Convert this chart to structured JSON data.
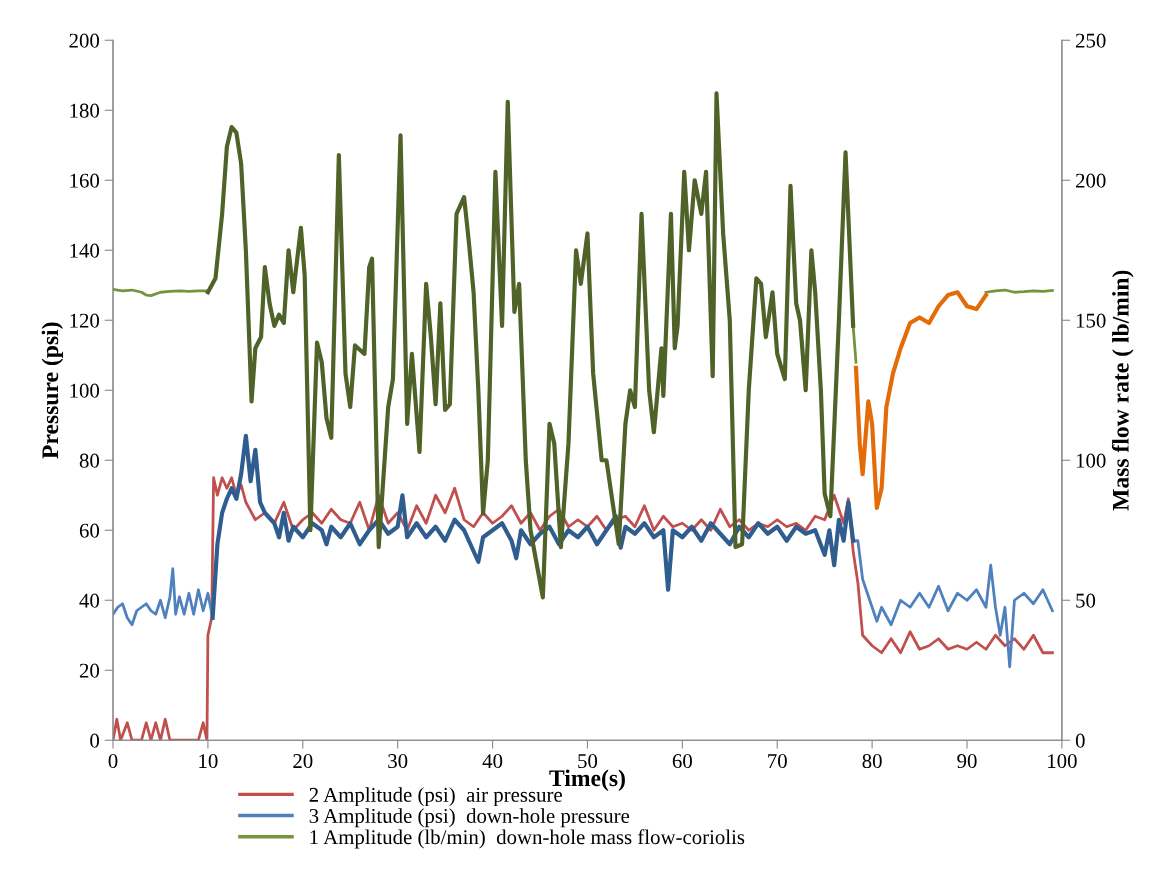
{
  "chart_data": {
    "type": "line",
    "xlabel": "Time(s)",
    "ylabel": "Pressure (psi)",
    "y2label": "Mass flow rate ( lb/min)",
    "xlim": [
      0,
      100
    ],
    "xticks": [
      0,
      10,
      20,
      30,
      40,
      50,
      60,
      70,
      80,
      90,
      100
    ],
    "ylim": [
      0,
      200
    ],
    "yticks": [
      0,
      20,
      40,
      60,
      80,
      100,
      120,
      140,
      160,
      180,
      200
    ],
    "y2lim": [
      0,
      250
    ],
    "y2ticks": [
      0,
      50,
      100,
      150,
      200,
      250
    ],
    "grid": false,
    "legend": "bottom",
    "line_style": "solid",
    "marker": "none",
    "series": [
      {
        "name": "2 Amplitude (psi)  air pressure",
        "color": "#c0504d",
        "x": [
          0,
          0.4,
          0.8,
          1.5,
          2,
          3,
          3.5,
          4,
          4.5,
          5,
          5.5,
          6,
          9,
          9.5,
          9.9,
          10,
          10.4,
          10.6,
          11,
          11.5,
          12,
          12.5,
          13,
          13.5,
          14,
          15,
          16,
          17,
          18,
          19,
          20,
          21,
          22,
          23,
          24,
          25,
          26,
          27,
          28,
          29,
          30,
          31,
          32,
          33,
          34,
          35,
          36,
          37,
          38,
          39,
          40,
          41,
          42,
          43,
          44,
          45,
          46,
          47,
          48,
          49,
          50,
          51,
          52,
          53,
          54,
          55,
          56,
          57,
          58,
          59,
          60,
          61,
          62,
          63,
          64,
          65,
          66,
          67,
          68,
          69,
          70,
          71,
          72,
          73,
          74,
          75,
          76,
          77,
          77.5,
          78,
          78.5,
          79,
          80,
          81,
          82,
          83,
          84,
          85,
          86,
          87,
          88,
          89,
          90,
          91,
          92,
          93,
          94,
          95,
          96,
          97,
          98,
          99
        ],
        "values": [
          0,
          6,
          0,
          5,
          0,
          0,
          5,
          0,
          5,
          0,
          6,
          0,
          0,
          5,
          0,
          30,
          35,
          75,
          70,
          75,
          72,
          75,
          70,
          73,
          68,
          63,
          65,
          62,
          68,
          60,
          63,
          65,
          62,
          66,
          63,
          62,
          68,
          60,
          70,
          62,
          65,
          60,
          67,
          62,
          70,
          65,
          72,
          63,
          61,
          65,
          62,
          64,
          67,
          62,
          65,
          60,
          64,
          66,
          61,
          63,
          61,
          64,
          60,
          63,
          64,
          61,
          67,
          60,
          64,
          61,
          62,
          60,
          63,
          60,
          66,
          61,
          63,
          60,
          62,
          61,
          63,
          61,
          62,
          60,
          64,
          63,
          70,
          62,
          69,
          54,
          45,
          30,
          27,
          25,
          29,
          25,
          31,
          26,
          27,
          29,
          26,
          27,
          26,
          28,
          26,
          30,
          27,
          29,
          26,
          30,
          25,
          25
        ]
      },
      {
        "name": "3 Amplitude (psi)  down-hole pressure",
        "color": "#4f81bd",
        "x": [
          0,
          0.5,
          1,
          1.5,
          2,
          2.5,
          3,
          3.5,
          4,
          4.5,
          5,
          5.5,
          6,
          6.3,
          6.6,
          7,
          7.5,
          8,
          8.5,
          9,
          9.5,
          10,
          10.5,
          44,
          78,
          78.5,
          79,
          79.5,
          80,
          80.5,
          81,
          82,
          83,
          84,
          85,
          86,
          87,
          88,
          89,
          90,
          91,
          92,
          92.5,
          93,
          93.5,
          94,
          94.5,
          95,
          96,
          97,
          98,
          99
        ],
        "values": [
          36,
          38,
          39,
          35,
          33,
          37,
          38,
          39,
          37,
          36,
          40,
          35,
          41,
          49,
          36,
          41,
          36,
          42,
          36,
          43,
          37,
          42,
          35,
          null,
          57,
          57,
          46,
          42,
          38,
          34,
          38,
          33,
          40,
          38,
          42,
          38,
          44,
          37,
          42,
          40,
          43,
          38,
          50,
          38,
          30,
          38,
          21,
          40,
          42,
          39,
          43,
          37
        ]
      },
      {
        "color": "#2f5d8f",
        "x": [
          10.5,
          11,
          11.5,
          12,
          12.5,
          13,
          13.5,
          14,
          14.5,
          15,
          15.5,
          16,
          17,
          17.5,
          18,
          18.5,
          19,
          20,
          21,
          22,
          22.5,
          23,
          24,
          25,
          26,
          27,
          28,
          29,
          30,
          30.5,
          31,
          32,
          33,
          34,
          35,
          36,
          37,
          38,
          38.5,
          39,
          40,
          41,
          42,
          42.5,
          43,
          44,
          45,
          46,
          47,
          48,
          49,
          50,
          51,
          52,
          53,
          53.5,
          54,
          55,
          56,
          57,
          58,
          58.5,
          59,
          60,
          61,
          62,
          63,
          64,
          65,
          66,
          67,
          68,
          69,
          70,
          71,
          72,
          73,
          74,
          75,
          75.5,
          76,
          76.5,
          77,
          77.5,
          78
        ],
        "values": [
          35,
          56,
          65,
          69,
          72,
          69,
          76,
          87,
          74,
          83,
          68,
          65,
          62,
          58,
          65,
          57,
          61,
          58,
          62,
          60,
          56,
          61,
          58,
          62,
          56,
          60,
          63,
          59,
          61,
          70,
          58,
          62,
          58,
          61,
          57,
          63,
          60,
          54,
          51,
          58,
          60,
          62,
          57,
          52,
          60,
          56,
          59,
          61,
          56,
          60,
          58,
          61,
          56,
          60,
          64,
          55,
          61,
          59,
          62,
          58,
          60,
          43,
          60,
          58,
          61,
          57,
          62,
          59,
          56,
          61,
          58,
          62,
          59,
          61,
          57,
          61,
          59,
          60,
          53,
          60,
          50,
          63,
          57,
          68,
          57
        ]
      },
      {
        "name": "1 Amplitude (lb/min)  down-hole mass flow-coriolis",
        "color": "#77933c",
        "axis": "y2",
        "x": [
          0,
          1,
          2,
          3,
          3.5,
          4,
          5,
          6,
          7,
          8,
          9,
          10,
          44,
          78,
          78.3,
          85,
          92,
          93,
          94,
          95,
          96,
          97,
          98,
          99
        ],
        "values": [
          161,
          160.5,
          160.8,
          160,
          159,
          158.8,
          160,
          160.3,
          160.5,
          160.3,
          160.5,
          160.5,
          null,
          148,
          135,
          null,
          160,
          160.5,
          160.8,
          160,
          160.2,
          160.5,
          160.3,
          160.6
        ]
      },
      {
        "color": "#4f6228",
        "axis": "y2",
        "x": [
          10,
          10.8,
          11.5,
          12,
          12.5,
          13,
          13.5,
          14,
          14.6,
          15,
          15.6,
          16,
          16.5,
          17,
          17.5,
          18,
          18.5,
          19,
          19.8,
          20.2,
          20.8,
          21.5,
          22,
          22.5,
          23,
          23.8,
          24.5,
          25,
          25.5,
          26.5,
          27,
          27.3,
          28,
          29,
          29.5,
          30.3,
          31,
          31.5,
          32.3,
          33,
          33.5,
          34,
          34.5,
          35,
          35.5,
          36.2,
          37,
          37.5,
          38,
          38.5,
          39,
          39.5,
          40.3,
          41,
          41.6,
          42.3,
          42.8,
          43.5,
          44,
          45.3,
          46,
          46.5,
          47.2,
          48,
          48.8,
          49.3,
          50,
          50.6,
          51.5,
          52,
          53.3,
          54,
          54.5,
          55,
          55.7,
          56.5,
          57,
          57.8,
          58,
          58.8,
          59.2,
          59.5,
          60.2,
          60.7,
          61.3,
          62,
          62.5,
          63.2,
          63.6,
          64.3,
          65,
          65.6,
          66.3,
          67,
          67.8,
          68.3,
          68.8,
          69.5,
          70,
          70.8,
          71.4,
          72,
          72.4,
          73,
          73.6,
          74,
          74.6,
          75,
          75.6,
          76.5,
          77.2,
          78
        ],
        "values": [
          160,
          165,
          188,
          212,
          219,
          217,
          206,
          175,
          121,
          140,
          144,
          169,
          156,
          148,
          152,
          149,
          175,
          160,
          183,
          166,
          75,
          142,
          135,
          115,
          108,
          209,
          131,
          119,
          141,
          138,
          169,
          172,
          69,
          119,
          129,
          216,
          113,
          138,
          103,
          163,
          144,
          120,
          156,
          118,
          120,
          188,
          194,
          178,
          160,
          125,
          81,
          100,
          203,
          148,
          228,
          153,
          163,
          100,
          75,
          51,
          113,
          106,
          69,
          106,
          175,
          163,
          181,
          131,
          100,
          100,
          70,
          113,
          125,
          119,
          188,
          125,
          110,
          140,
          123,
          188,
          140,
          148,
          203,
          175,
          200,
          188,
          203,
          130,
          231,
          181,
          150,
          69,
          70,
          125,
          165,
          163,
          144,
          160,
          138,
          129,
          198,
          156,
          150,
          125,
          175,
          160,
          125,
          88,
          80,
          150,
          210,
          148
        ]
      },
      {
        "color": "#e36c09",
        "axis": "y2",
        "x": [
          78.3,
          78.7,
          79,
          79.6,
          80,
          80.5,
          81,
          81.5,
          82.2,
          83,
          84,
          85,
          86,
          87,
          88,
          89,
          90,
          91,
          92
        ],
        "values": [
          133,
          106,
          95,
          121,
          113,
          83,
          90,
          119,
          131,
          140,
          149,
          151,
          149,
          155,
          159,
          160,
          155,
          154,
          159
        ]
      }
    ]
  }
}
